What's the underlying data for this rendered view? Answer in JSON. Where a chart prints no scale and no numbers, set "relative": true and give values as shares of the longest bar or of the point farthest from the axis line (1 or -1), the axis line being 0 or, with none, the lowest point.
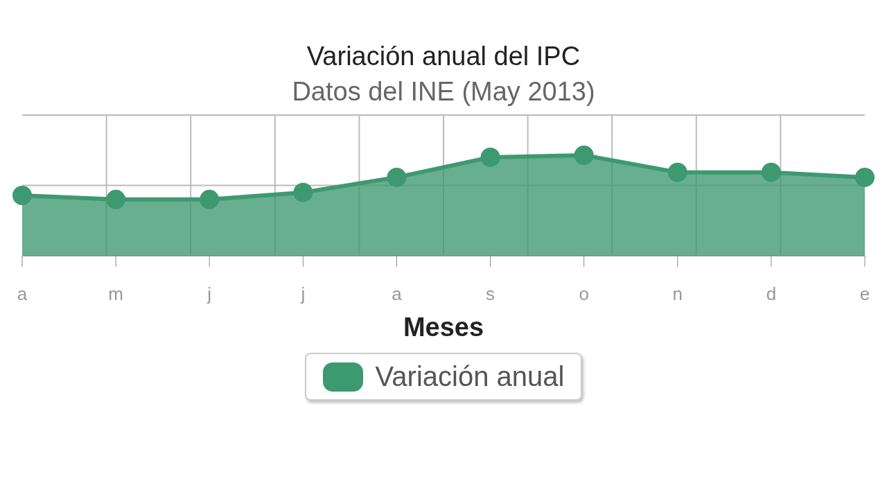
{
  "chart_data": {
    "type": "area",
    "title": "Variación anual del IPC",
    "subtitle": "Datos del INE (May 2013)",
    "xlabel": "Meses",
    "categories": [
      "a",
      "m",
      "j",
      "j",
      "a",
      "s",
      "o",
      "n",
      "d",
      "e"
    ],
    "series": [
      {
        "name": "Variación anual",
        "color": "#3d9970",
        "values": [
          0.6,
          0.56,
          0.56,
          0.63,
          0.78,
          0.98,
          1,
          0.83,
          0.83,
          0.78
        ]
      }
    ],
    "relative": true,
    "grid": true,
    "legend": "bottom",
    "marker": "circle"
  }
}
